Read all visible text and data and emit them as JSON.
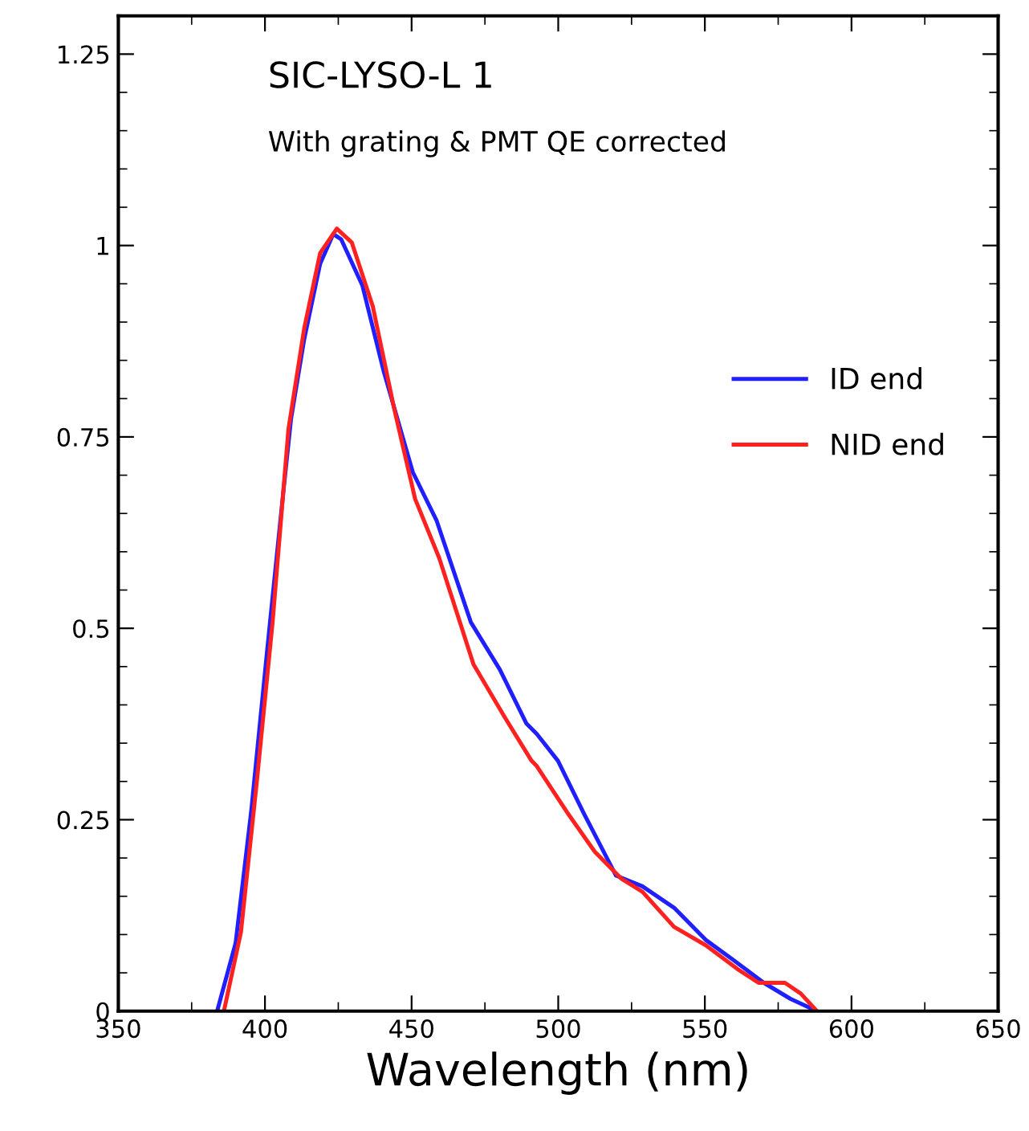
{
  "chart_data": {
    "type": "line",
    "title": "SIC-LYSO-L 1",
    "subtitle": "With grating & PMT QE corrected",
    "xlabel": "Wavelength (nm)",
    "xlim": [
      350,
      650
    ],
    "xticks": [
      350,
      400,
      450,
      500,
      550,
      600,
      650
    ],
    "ylim": [
      0,
      1.3
    ],
    "yticks": [
      0,
      0.25,
      0.5,
      0.75,
      1,
      1.25
    ],
    "grid": false,
    "legend": "right",
    "marker": "none",
    "line_style": "solid",
    "series": [
      {
        "name": "ID end",
        "color": "#1f1fff",
        "x": [
          383.7,
          390.0,
          395.4,
          400.8,
          406.2,
          408.9,
          413.4,
          418.8,
          423.3,
          426.0,
          433.2,
          440.4,
          450.4,
          458.5,
          470.2,
          480.1,
          489.1,
          492.7,
          499.9,
          508.9,
          519.7,
          528.7,
          539.5,
          550.3,
          559.3,
          570.1,
          579.2,
          588.2
        ],
        "values": [
          0,
          0.089,
          0.264,
          0.473,
          0.676,
          0.774,
          0.878,
          0.976,
          1.015,
          1.008,
          0.948,
          0.837,
          0.704,
          0.641,
          0.508,
          0.446,
          0.376,
          0.362,
          0.327,
          0.257,
          0.177,
          0.163,
          0.135,
          0.093,
          0.068,
          0.037,
          0.016,
          0
        ]
      },
      {
        "name": "NID end",
        "color": "#ff2020",
        "x": [
          386.0,
          391.8,
          397.2,
          402.6,
          408.0,
          413.4,
          418.8,
          424.5,
          429.6,
          436.8,
          444.0,
          451.2,
          459.4,
          471.1,
          481.9,
          490.9,
          492.7,
          503.5,
          512.5,
          521.5,
          528.7,
          539.5,
          550.3,
          561.1,
          568.3,
          577.3,
          582.7,
          588.2
        ],
        "values": [
          0,
          0.103,
          0.299,
          0.508,
          0.76,
          0.892,
          0.99,
          1.022,
          1.004,
          0.92,
          0.788,
          0.669,
          0.592,
          0.453,
          0.383,
          0.327,
          0.32,
          0.257,
          0.208,
          0.173,
          0.156,
          0.11,
          0.086,
          0.055,
          0.037,
          0.037,
          0.023,
          0
        ]
      }
    ]
  }
}
